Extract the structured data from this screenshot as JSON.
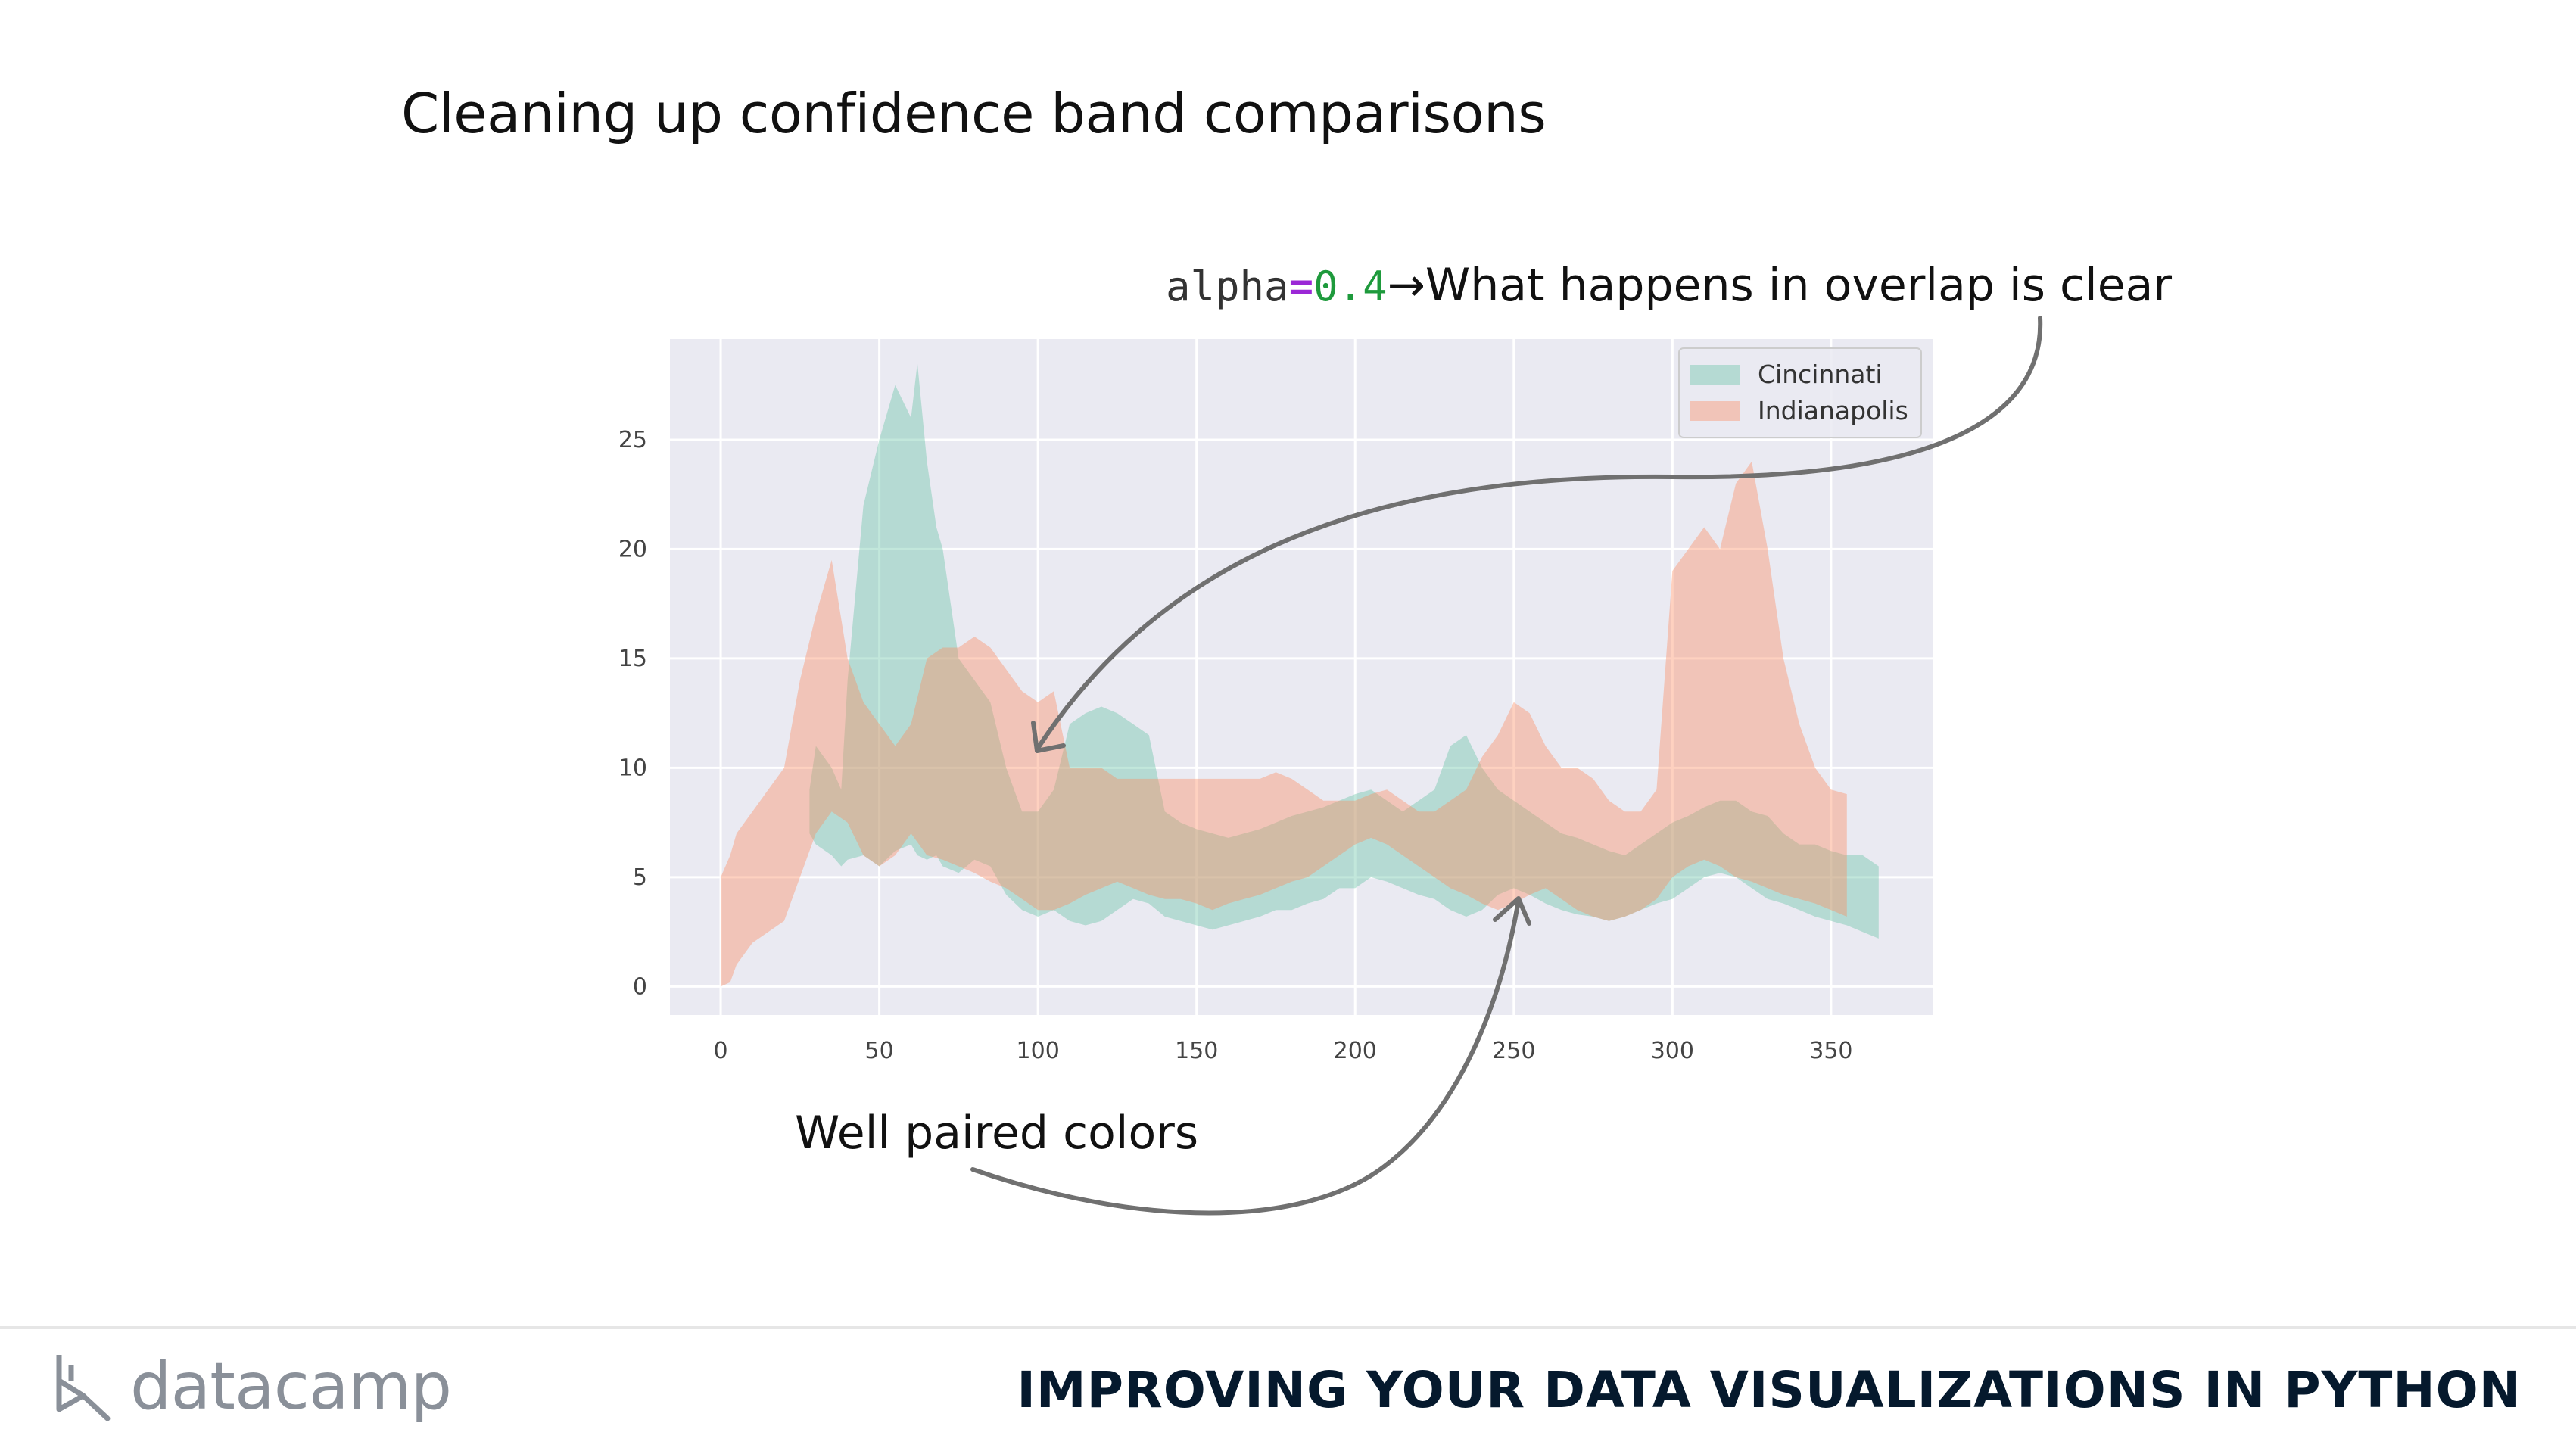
{
  "slide": {
    "title": "Cleaning up confidence band comparisons",
    "annotation_top": {
      "code_name": "alpha",
      "code_op": "=",
      "code_value": "0.4",
      "arrow": "→",
      "text": "What happens in overlap is clear"
    },
    "annotation_bottom": "Well paired colors"
  },
  "footer": {
    "brand": "datacamp",
    "course": "IMPROVING YOUR DATA VISUALIZATIONS IN PYTHON"
  },
  "colors": {
    "cincinnati": "#66c2a5",
    "indianapolis": "#fc8d62",
    "plot_bg": "#eaeaf2",
    "arrow": "#707070"
  },
  "chart_data": {
    "type": "area",
    "title": "",
    "xlabel": "",
    "ylabel": "",
    "xlim": [
      -16,
      382
    ],
    "ylim": [
      -1.3,
      29.6
    ],
    "xticks": [
      0,
      50,
      100,
      150,
      200,
      250,
      300,
      350
    ],
    "yticks": [
      0,
      5,
      10,
      15,
      20,
      25
    ],
    "grid": true,
    "alpha": 0.4,
    "legend_position": "upper-right",
    "series": [
      {
        "name": "Cincinnati",
        "x": [
          28,
          30,
          35,
          38,
          40,
          45,
          50,
          55,
          60,
          62,
          65,
          68,
          70,
          75,
          80,
          85,
          90,
          95,
          100,
          105,
          110,
          115,
          120,
          125,
          130,
          135,
          140,
          145,
          150,
          155,
          160,
          165,
          170,
          175,
          180,
          185,
          190,
          195,
          200,
          205,
          210,
          215,
          220,
          225,
          230,
          235,
          240,
          245,
          250,
          255,
          260,
          265,
          270,
          275,
          280,
          285,
          290,
          295,
          300,
          305,
          310,
          315,
          320,
          325,
          330,
          335,
          340,
          345,
          350,
          355,
          360,
          365
        ],
        "lower": [
          7,
          6.5,
          6,
          5.5,
          5.8,
          6,
          5.5,
          6.2,
          6.5,
          6,
          5.8,
          6,
          5.5,
          5.2,
          5.8,
          5.5,
          4.2,
          3.5,
          3.2,
          3.5,
          3,
          2.8,
          3,
          3.5,
          4,
          3.8,
          3.2,
          3,
          2.8,
          2.6,
          2.8,
          3,
          3.2,
          3.5,
          3.5,
          3.8,
          4,
          4.5,
          4.5,
          5,
          4.8,
          4.5,
          4.2,
          4,
          3.5,
          3.2,
          3.5,
          4.2,
          4.5,
          4.2,
          3.8,
          3.5,
          3.3,
          3.2,
          3,
          3.2,
          3.5,
          3.8,
          4,
          4.5,
          5,
          5.2,
          5,
          4.5,
          4,
          3.8,
          3.5,
          3.2,
          3,
          2.8,
          2.5,
          2.2
        ],
        "upper": [
          9,
          11,
          10,
          9,
          14,
          22,
          25,
          27.5,
          26,
          28.5,
          24,
          21,
          20,
          15,
          14,
          13,
          10,
          8,
          8,
          9,
          12,
          12.5,
          12.8,
          12.5,
          12,
          11.5,
          8,
          7.5,
          7.2,
          7,
          6.8,
          7,
          7.2,
          7.5,
          7.8,
          8,
          8.2,
          8.5,
          8.8,
          9,
          8.5,
          8,
          8.5,
          9,
          11,
          11.5,
          10,
          9,
          8.5,
          8,
          7.5,
          7,
          6.8,
          6.5,
          6.2,
          6,
          6.5,
          7,
          7.5,
          7.8,
          8.2,
          8.5,
          8.5,
          8,
          7.8,
          7,
          6.5,
          6.5,
          6.2,
          6,
          6,
          5.5
        ]
      },
      {
        "name": "Indianapolis",
        "x": [
          0,
          3,
          5,
          10,
          15,
          20,
          25,
          30,
          35,
          40,
          45,
          50,
          55,
          60,
          65,
          70,
          75,
          80,
          85,
          90,
          95,
          100,
          105,
          110,
          115,
          120,
          125,
          130,
          135,
          140,
          145,
          150,
          155,
          160,
          165,
          170,
          175,
          180,
          185,
          190,
          195,
          200,
          205,
          210,
          215,
          220,
          225,
          230,
          235,
          240,
          245,
          250,
          255,
          260,
          265,
          270,
          275,
          280,
          285,
          290,
          295,
          300,
          305,
          310,
          315,
          320,
          325,
          330,
          335,
          340,
          345,
          350,
          355
        ],
        "lower": [
          0,
          0.2,
          1,
          2,
          2.5,
          3,
          5,
          7,
          8,
          7.5,
          6,
          5.5,
          6,
          7,
          6,
          5.8,
          5.5,
          5.2,
          4.8,
          4.5,
          4,
          3.5,
          3.5,
          3.8,
          4.2,
          4.5,
          4.8,
          4.5,
          4.2,
          4,
          4,
          3.8,
          3.5,
          3.8,
          4,
          4.2,
          4.5,
          4.8,
          5,
          5.5,
          6,
          6.5,
          6.8,
          6.5,
          6,
          5.5,
          5,
          4.5,
          4.2,
          3.8,
          3.5,
          3.8,
          4.2,
          4.5,
          4,
          3.5,
          3.2,
          3,
          3.2,
          3.5,
          4,
          5,
          5.5,
          5.8,
          5.5,
          5,
          4.8,
          4.5,
          4.2,
          4,
          3.8,
          3.5,
          3.2
        ],
        "upper": [
          5,
          6,
          7,
          8,
          9,
          10,
          14,
          17,
          19.5,
          15,
          13,
          12,
          11,
          12,
          15,
          15.5,
          15.5,
          16,
          15.5,
          14.5,
          13.5,
          13,
          13.5,
          10,
          10,
          10,
          9.5,
          9.5,
          9.5,
          9.5,
          9.5,
          9.5,
          9.5,
          9.5,
          9.5,
          9.5,
          9.8,
          9.5,
          9,
          8.5,
          8.5,
          8.5,
          8.8,
          9,
          8.5,
          8,
          8,
          8.5,
          9,
          10.5,
          11.5,
          13,
          12.5,
          11,
          10,
          10,
          9.5,
          8.5,
          8,
          8,
          9,
          19,
          20,
          21,
          20,
          23,
          24,
          20,
          15,
          12,
          10,
          9,
          8.8
        ]
      }
    ]
  }
}
